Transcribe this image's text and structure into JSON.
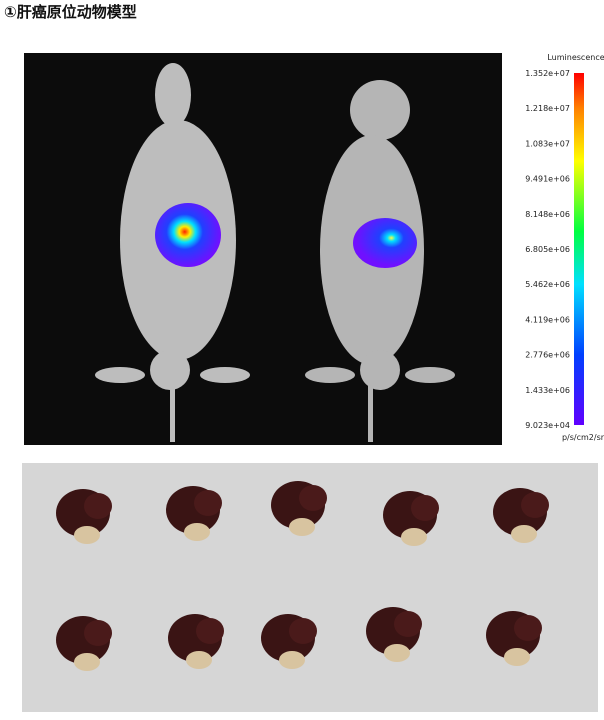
{
  "title": "①肝癌原位动物模型",
  "imaging": {
    "colorbar": {
      "title": "Luminescence",
      "unit": "p/s/cm2/sr",
      "labels": [
        "1.352e+07",
        "1.218e+07",
        "1.083e+07",
        "9.491e+06",
        "8.148e+06",
        "6.805e+06",
        "5.462e+06",
        "4.119e+06",
        "2.776e+06",
        "1.433e+06",
        "9.023e+04"
      ]
    }
  }
}
